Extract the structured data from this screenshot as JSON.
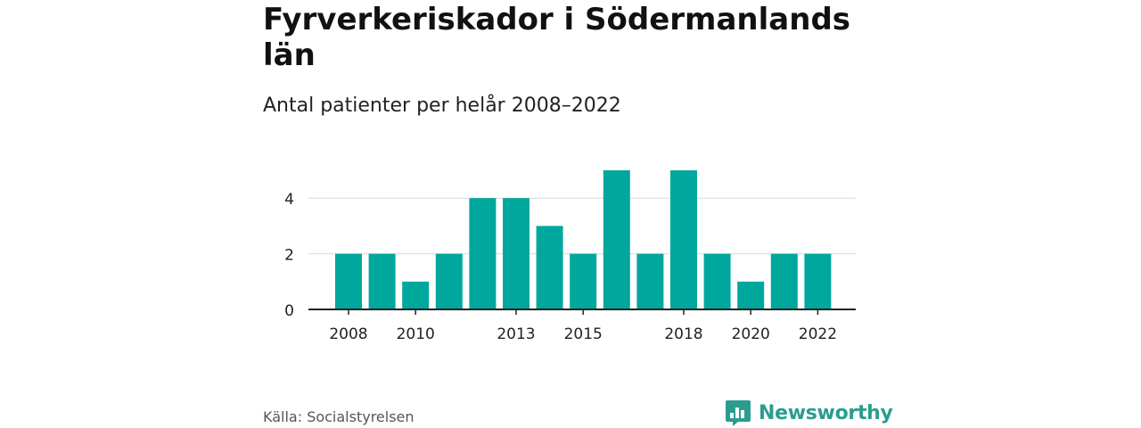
{
  "header": {
    "title": "Fyrverkeriskador i Södermanlands län",
    "subtitle": "Antal patienter per helår 2008–2022"
  },
  "footer": {
    "source": "Källa: Socialstyrelsen",
    "brand": "Newsworthy"
  },
  "colors": {
    "bar": "#00a79d",
    "grid": "#d9d9d9",
    "axis": "#222222",
    "brand": "#2a9d8f"
  },
  "chart_data": {
    "type": "bar",
    "categories": [
      "2008",
      "2009",
      "2010",
      "2011",
      "2012",
      "2013",
      "2014",
      "2015",
      "2016",
      "2017",
      "2018",
      "2019",
      "2020",
      "2021",
      "2022"
    ],
    "values": [
      2,
      2,
      1,
      2,
      4,
      4,
      3,
      2,
      5,
      2,
      5,
      2,
      1,
      2,
      2
    ],
    "x_tick_labels": [
      "2008",
      "2010",
      "2013",
      "2015",
      "2018",
      "2020",
      "2022"
    ],
    "y_ticks": [
      0,
      2,
      4
    ],
    "ylim": [
      0,
      5
    ],
    "grid": true
  }
}
